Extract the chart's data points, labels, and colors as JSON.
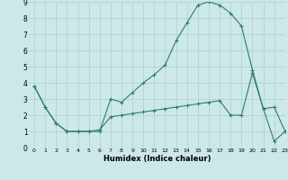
{
  "xlabel": "Humidex (Indice chaleur)",
  "xlim": [
    -0.5,
    23
  ],
  "ylim": [
    0,
    9
  ],
  "xticks": [
    0,
    1,
    2,
    3,
    4,
    5,
    6,
    7,
    8,
    9,
    10,
    11,
    12,
    13,
    14,
    15,
    16,
    17,
    18,
    19,
    20,
    21,
    22,
    23
  ],
  "yticks": [
    0,
    1,
    2,
    3,
    4,
    5,
    6,
    7,
    8,
    9
  ],
  "bg_color": "#cce8e8",
  "grid_color": "#b8d4d4",
  "line_color": "#2e7d6e",
  "line1_x": [
    0,
    1,
    2,
    3,
    4,
    5,
    6,
    7,
    8,
    9,
    10,
    11,
    12,
    13,
    14,
    15,
    16,
    17,
    18,
    19,
    20,
    21,
    22,
    23
  ],
  "line1_y": [
    3.8,
    2.5,
    1.5,
    1.0,
    1.0,
    1.0,
    1.0,
    3.0,
    2.8,
    3.4,
    4.0,
    4.5,
    5.1,
    6.6,
    7.7,
    8.8,
    9.0,
    8.8,
    8.3,
    7.5,
    4.8,
    2.4,
    2.5,
    1.0
  ],
  "line2_x": [
    0,
    1,
    2,
    3,
    4,
    5,
    6,
    7,
    8,
    9,
    10,
    11,
    12,
    13,
    14,
    15,
    16,
    17,
    18,
    19,
    20,
    21,
    22,
    23
  ],
  "line2_y": [
    3.8,
    2.5,
    1.5,
    1.0,
    1.0,
    1.0,
    1.1,
    1.9,
    2.0,
    2.1,
    2.2,
    2.3,
    2.4,
    2.5,
    2.6,
    2.7,
    2.8,
    2.9,
    2.0,
    2.0,
    4.6,
    2.4,
    0.4,
    1.0
  ]
}
